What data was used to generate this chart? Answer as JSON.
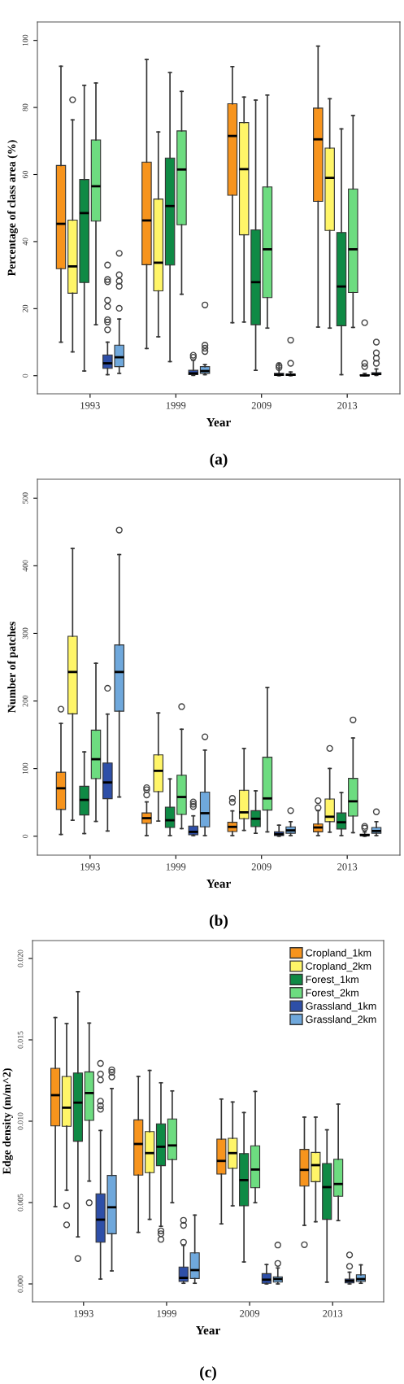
{
  "chart_data": [
    {
      "type": "box",
      "categories": [
        "1993",
        "1999",
        "2009",
        "2013"
      ],
      "xlabel": "Year",
      "ylabel": "Percentage of class area (%)",
      "ylim": [
        -5.4,
        105.5
      ],
      "yticks": [
        0,
        20,
        40,
        60,
        80,
        100
      ],
      "grid": false,
      "legend": false,
      "annotations": [
        "(a)"
      ],
      "series": [
        {
          "color": "#f7941d",
          "boxes": [
            {
              "low": 10.0,
              "q1": 31.9,
              "median": 45.3,
              "q3": 62.7,
              "high": 92.3
            },
            {
              "low": 8.1,
              "q1": 33.1,
              "median": 46.3,
              "q3": 63.7,
              "high": 94.3
            },
            {
              "low": 15.8,
              "q1": 53.8,
              "median": 71.5,
              "q3": 81.1,
              "high": 92.2
            },
            {
              "low": 14.5,
              "q1": 52.0,
              "median": 70.5,
              "q3": 79.8,
              "high": 98.3
            }
          ]
        },
        {
          "color": "#fff568",
          "boxes": [
            {
              "low": 7.1,
              "q1": 24.6,
              "median": 32.6,
              "q3": 46.4,
              "high": 76.3,
              "outliers": [
                82.3
              ]
            },
            {
              "low": 11.6,
              "q1": 25.3,
              "median": 33.7,
              "q3": 52.7,
              "high": 72.7
            },
            {
              "low": 16.0,
              "q1": 42.0,
              "median": 61.6,
              "q3": 75.5,
              "high": 83.1
            },
            {
              "low": 14.2,
              "q1": 43.3,
              "median": 59.0,
              "q3": 67.9,
              "high": 82.6
            }
          ]
        },
        {
          "color": "#0f8a45",
          "boxes": [
            {
              "low": 1.4,
              "q1": 27.8,
              "median": 48.5,
              "q3": 58.5,
              "high": 86.6
            },
            {
              "low": 4.2,
              "q1": 33.0,
              "median": 50.6,
              "q3": 64.9,
              "high": 90.4
            },
            {
              "low": 1.6,
              "q1": 15.2,
              "median": 27.9,
              "q3": 43.5,
              "high": 82.2
            },
            {
              "low": 0.3,
              "q1": 14.9,
              "median": 26.6,
              "q3": 42.7,
              "high": 73.6
            }
          ]
        },
        {
          "color": "#6ddc80",
          "boxes": [
            {
              "low": 15.2,
              "q1": 46.1,
              "median": 56.5,
              "q3": 70.3,
              "high": 87.3
            },
            {
              "low": 24.3,
              "q1": 45.0,
              "median": 61.5,
              "q3": 73.0,
              "high": 84.8
            },
            {
              "low": 14.2,
              "q1": 23.3,
              "median": 37.7,
              "q3": 56.3,
              "high": 83.7
            },
            {
              "low": 14.4,
              "q1": 24.8,
              "median": 37.7,
              "q3": 55.7,
              "high": 77.6
            }
          ]
        },
        {
          "color": "#2e4fa8",
          "boxes": [
            {
              "low": 0.3,
              "q1": 2.2,
              "median": 3.7,
              "q3": 6.2,
              "high": 10.0,
              "outliers": [
                13.7,
                16.0,
                16.7,
                20.6,
                22.5,
                28.0,
                28.7,
                33.0
              ]
            },
            {
              "low": 0.1,
              "q1": 0.3,
              "median": 0.7,
              "q3": 1.6,
              "high": 4.6,
              "outliers": [
                5.5,
                6.1
              ]
            },
            {
              "low": 0,
              "q1": 0.1,
              "median": 0.3,
              "q3": 0.7,
              "high": 3.7,
              "outliers": [
                2.4,
                3.0
              ]
            },
            {
              "low": 0,
              "q1": 0,
              "median": 0.1,
              "q3": 0.3,
              "high": 0.7,
              "outliers": [
                2.7,
                3.7,
                15.8
              ]
            }
          ]
        },
        {
          "color": "#6fa8dc",
          "boxes": [
            {
              "low": 0.7,
              "q1": 2.7,
              "median": 5.5,
              "q3": 9.1,
              "high": 16.9,
              "outliers": [
                20.1,
                26.7,
                28.2,
                30.1,
                36.5
              ]
            },
            {
              "low": 0.3,
              "q1": 0.7,
              "median": 1.4,
              "q3": 2.7,
              "high": 3.3,
              "outliers": [
                7.2,
                8.2,
                9.1,
                21.1
              ]
            },
            {
              "low": 0,
              "q1": 0.1,
              "median": 0.3,
              "q3": 0.5,
              "high": 1.1,
              "outliers": [
                3.7,
                10.6
              ]
            },
            {
              "low": 0.1,
              "q1": 0.3,
              "median": 0.5,
              "q3": 0.9,
              "high": 2.0,
              "outliers": [
                3.7,
                5.2,
                6.8,
                10.0
              ]
            }
          ]
        }
      ]
    },
    {
      "type": "box",
      "categories": [
        "1993",
        "1999",
        "2009",
        "2013"
      ],
      "xlabel": "Year",
      "ylabel": "Number of patches",
      "ylim": [
        -28,
        528
      ],
      "yticks": [
        0,
        100,
        200,
        300,
        400,
        500
      ],
      "grid": false,
      "legend": false,
      "annotations": [
        "(b)"
      ],
      "series": [
        {
          "color": "#f7941d",
          "boxes": [
            {
              "low": 2.6,
              "q1": 39.6,
              "median": 70.9,
              "q3": 94.6,
              "high": 166.8,
              "outliers": [
                187.9
              ]
            },
            {
              "low": 0.9,
              "q1": 18.9,
              "median": 26.7,
              "q3": 34.4,
              "high": 50.7,
              "outliers": [
                61.0,
                68.8,
                71.8
              ]
            },
            {
              "low": 0.9,
              "q1": 6.9,
              "median": 13.8,
              "q3": 20.6,
              "high": 37.4,
              "outliers": [
                50.3,
                55.9
              ]
            },
            {
              "low": 0.9,
              "q1": 6.4,
              "median": 12.9,
              "q3": 18.1,
              "high": 37.8,
              "outliers": [
                42.1,
                52.5
              ]
            }
          ]
        },
        {
          "color": "#fff568",
          "boxes": [
            {
              "low": 23.6,
              "q1": 181.0,
              "median": 242.9,
              "q3": 295.8,
              "high": 425.6
            },
            {
              "low": 22.4,
              "q1": 65.8,
              "median": 96.7,
              "q3": 120.4,
              "high": 182.3
            },
            {
              "low": 8.6,
              "q1": 25.8,
              "median": 35.3,
              "q3": 67.9,
              "high": 129.8
            },
            {
              "low": 6.0,
              "q1": 21.5,
              "median": 28.8,
              "q3": 55.0,
              "high": 100.2,
              "outliers": [
                129.8
              ]
            }
          ]
        },
        {
          "color": "#0f8a45",
          "boxes": [
            {
              "low": 3.9,
              "q1": 31.4,
              "median": 53.7,
              "q3": 73.9,
              "high": 124.7
            },
            {
              "low": 0.9,
              "q1": 12.9,
              "median": 23.6,
              "q3": 43.0,
              "high": 84.7
            },
            {
              "low": 4.3,
              "q1": 14.2,
              "median": 25.8,
              "q3": 37.8,
              "high": 67.1
            },
            {
              "low": 0.9,
              "q1": 10.7,
              "median": 20.6,
              "q3": 34.4,
              "high": 64.5
            }
          ]
        },
        {
          "color": "#6ddc80",
          "boxes": [
            {
              "low": 21.9,
              "q1": 85.1,
              "median": 113.9,
              "q3": 156.9,
              "high": 255.8
            },
            {
              "low": 11.2,
              "q1": 32.2,
              "median": 58.0,
              "q3": 90.3,
              "high": 158.2,
              "outliers": [
                191.7
              ]
            },
            {
              "low": 6.4,
              "q1": 38.7,
              "median": 55.9,
              "q3": 116.9,
              "high": 220.1
            },
            {
              "low": 5.2,
              "q1": 29.7,
              "median": 51.6,
              "q3": 85.6,
              "high": 145.3,
              "outliers": [
                172.0
              ]
            }
          ]
        },
        {
          "color": "#2e4fa8",
          "boxes": [
            {
              "low": 7.7,
              "q1": 55.5,
              "median": 79.5,
              "q3": 108.3,
              "high": 180.6,
              "outliers": [
                218.8
              ]
            },
            {
              "low": 0.9,
              "q1": 2.1,
              "median": 6.4,
              "q3": 15.0,
              "high": 30.1,
              "outliers": [
                43.9,
                47.3,
                50.7
              ]
            },
            {
              "low": 0,
              "q1": 0.9,
              "median": 3.0,
              "q3": 6.4,
              "high": 16.3
            },
            {
              "low": 0,
              "q1": 0.9,
              "median": 1.7,
              "q3": 3.0,
              "high": 6.4,
              "outliers": [
                12.0,
                14.6
              ]
            }
          ]
        },
        {
          "color": "#6fa8dc",
          "boxes": [
            {
              "low": 58.0,
              "q1": 184.9,
              "median": 242.9,
              "q3": 282.9,
              "high": 416.6,
              "outliers": [
                452.7
              ]
            },
            {
              "low": 0.9,
              "q1": 13.8,
              "median": 34.0,
              "q3": 65.3,
              "high": 127.3,
              "outliers": [
                147.0
              ]
            },
            {
              "low": 0.9,
              "q1": 4.3,
              "median": 8.6,
              "q3": 13.8,
              "high": 21.5,
              "outliers": [
                37.8
              ]
            },
            {
              "low": 0.9,
              "q1": 4.3,
              "median": 7.7,
              "q3": 12.9,
              "high": 21.5,
              "outliers": [
                36.1
              ]
            }
          ]
        }
      ]
    },
    {
      "type": "box",
      "categories": [
        "1993",
        "1999",
        "2009",
        "2013"
      ],
      "xlabel": "Year",
      "ylabel": "Edge density (m/m^2)",
      "ylim": [
        -0.0011,
        0.0211
      ],
      "yticks": [
        {
          "value": 0,
          "label": "0.000"
        },
        {
          "value": 0.005,
          "label": "0.005"
        },
        {
          "value": 0.01,
          "label": "0.010"
        },
        {
          "value": 0.015,
          "label": "0.015"
        },
        {
          "value": 0.02,
          "label": "0.020"
        }
      ],
      "grid": false,
      "legend": "top right",
      "annotations": [
        "(c)"
      ],
      "series": [
        {
          "name": "Cropland_1km",
          "color": "#f7941d",
          "boxes": [
            {
              "low": 0.00475,
              "q1": 0.00971,
              "median": 0.0116,
              "q3": 0.01325,
              "high": 0.01637
            },
            {
              "low": 0.00317,
              "q1": 0.00669,
              "median": 0.0086,
              "q3": 0.01008,
              "high": 0.01275
            },
            {
              "low": 0.00369,
              "q1": 0.00675,
              "median": 0.00756,
              "q3": 0.0089,
              "high": 0.01136
            },
            {
              "low": 0.0036,
              "q1": 0.00601,
              "median": 0.00701,
              "q3": 0.00827,
              "high": 0.01025,
              "outliers": [
                0.00241
              ]
            }
          ]
        },
        {
          "name": "Cropland_2km",
          "color": "#fff568",
          "boxes": [
            {
              "low": 0.00576,
              "q1": 0.00969,
              "median": 0.01083,
              "q3": 0.01275,
              "high": 0.016,
              "outliers": [
                0.0048,
                0.00363
              ]
            },
            {
              "low": 0.00397,
              "q1": 0.00684,
              "median": 0.00804,
              "q3": 0.00936,
              "high": 0.01312
            },
            {
              "low": 0.0048,
              "q1": 0.0071,
              "median": 0.00804,
              "q3": 0.00895,
              "high": 0.01118
            },
            {
              "low": 0.00382,
              "q1": 0.00628,
              "median": 0.0073,
              "q3": 0.00808,
              "high": 0.01025
            }
          ]
        },
        {
          "name": "Forest_1km",
          "color": "#0f8a45",
          "boxes": [
            {
              "low": 0.00289,
              "q1": 0.00877,
              "median": 0.01114,
              "q3": 0.01296,
              "high": 0.01796,
              "outliers": [
                0.00156
              ]
            },
            {
              "low": 0.00354,
              "q1": 0.00727,
              "median": 0.00843,
              "q3": 0.00984,
              "high": 0.01236,
              "outliers": [
                0.00326,
                0.00308,
                0.00274
              ]
            },
            {
              "low": 0.00135,
              "q1": 0.0048,
              "median": 0.00638,
              "q3": 0.00801,
              "high": 0.01053
            },
            {
              "low": 0.00011,
              "q1": 0.00397,
              "median": 0.00595,
              "q3": 0.0074,
              "high": 0.00947
            }
          ]
        },
        {
          "name": "Forest_2km",
          "color": "#6ddc80",
          "boxes": [
            {
              "low": 0.00632,
              "q1": 0.01005,
              "median": 0.01173,
              "q3": 0.01303,
              "high": 0.01603,
              "outliers": [
                0.00499
              ]
            },
            {
              "low": 0.00499,
              "q1": 0.00764,
              "median": 0.00851,
              "q3": 0.01014,
              "high": 0.01186
            },
            {
              "low": 0.00499,
              "q1": 0.00591,
              "median": 0.00703,
              "q3": 0.00849,
              "high": 0.01183
            },
            {
              "low": 0.00389,
              "q1": 0.00539,
              "median": 0.00614,
              "q3": 0.00766,
              "high": 0.01105
            }
          ]
        },
        {
          "name": "Grassland_1km",
          "color": "#2e4fa8",
          "boxes": [
            {
              "low": 0.0003,
              "q1": 0.00256,
              "median": 0.00395,
              "q3": 0.00554,
              "high": 0.00943,
              "outliers": [
                0.01355,
                0.0129,
                0.01253,
                0.01123,
                0.01095,
                0.01073
              ]
            },
            {
              "low": 4e-05,
              "q1": 0.00015,
              "median": 0.00037,
              "q3": 0.00104,
              "high": 0.00237,
              "outliers": [
                0.00391,
                0.0036,
                0.00256
              ]
            },
            {
              "low": 0,
              "q1": 4e-05,
              "median": 0.00026,
              "q3": 0.00063,
              "high": 0.00119
            },
            {
              "low": 0,
              "q1": 6e-05,
              "median": 0.00019,
              "q3": 0.0003,
              "high": 0.00072,
              "outliers": [
                0.00108,
                0.00178
              ]
            }
          ]
        },
        {
          "name": "Grassland_2km",
          "color": "#6fa8dc",
          "boxes": [
            {
              "low": 0.0008,
              "q1": 0.00308,
              "median": 0.00471,
              "q3": 0.00667,
              "high": 0.01201,
              "outliers": [
                0.01316,
                0.01301,
                0.01272
              ]
            },
            {
              "low": 4e-05,
              "q1": 0.00033,
              "median": 0.00085,
              "q3": 0.00191,
              "high": 0.00423
            },
            {
              "low": 0,
              "q1": 0.00011,
              "median": 0.0003,
              "q3": 0.00044,
              "high": 0.00098,
              "outliers": [
                0.00126,
                0.00239
              ]
            },
            {
              "low": 4e-05,
              "q1": 0.00015,
              "median": 0.0003,
              "q3": 0.00056,
              "high": 0.00117
            }
          ]
        }
      ]
    }
  ]
}
